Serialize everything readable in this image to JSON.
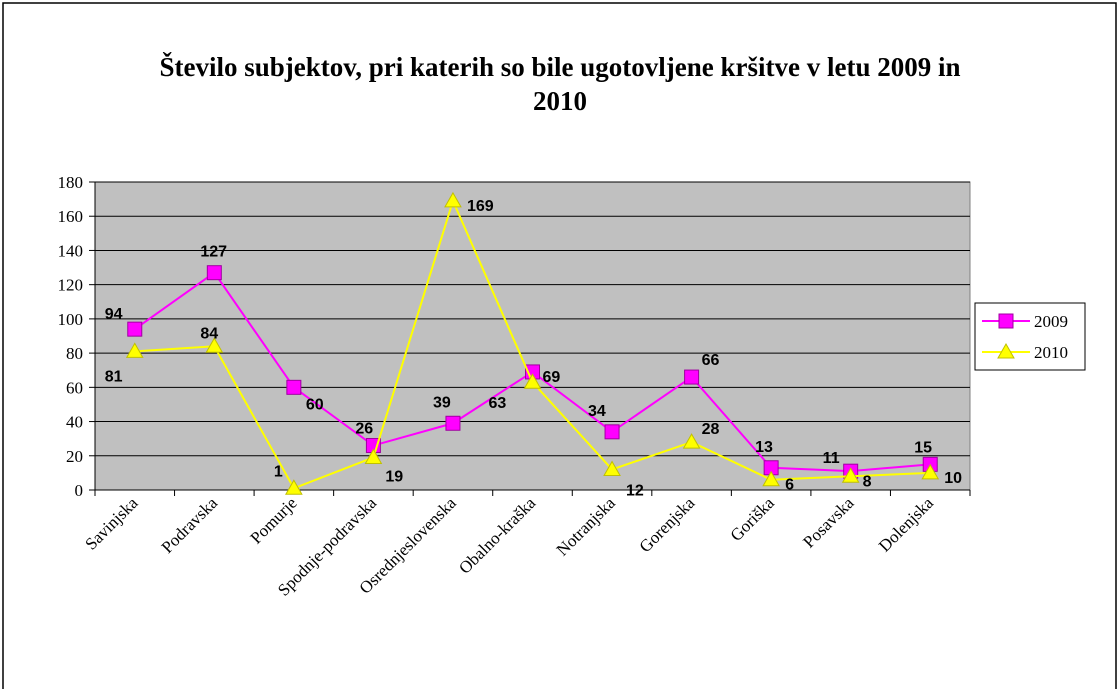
{
  "chart_data": {
    "type": "line",
    "title": "Število subjektov, pri katerih so bile ugotovljene kršitve v letu 2009 in 2010",
    "categories": [
      "Savinjska",
      "Podravska",
      "Pomurje",
      "Spodnje-podravska",
      "Osrednjeslovenska",
      "Obalno-kraška",
      "Notranjska",
      "Gorenjska",
      "Goriška",
      "Posavska",
      "Dolenjska"
    ],
    "series": [
      {
        "name": "2009",
        "color": "#ff00ff",
        "marker": "square",
        "values": [
          94,
          127,
          60,
          26,
          39,
          69,
          34,
          66,
          13,
          11,
          15
        ]
      },
      {
        "name": "2010",
        "color": "#ffff00",
        "marker": "triangle",
        "values": [
          81,
          84,
          1,
          19,
          169,
          63,
          12,
          28,
          6,
          8,
          10
        ]
      }
    ],
    "ylim": [
      0,
      180
    ],
    "yticks": [
      0,
      20,
      40,
      60,
      80,
      100,
      120,
      140,
      160,
      180
    ],
    "grid": true,
    "legend": "right"
  }
}
